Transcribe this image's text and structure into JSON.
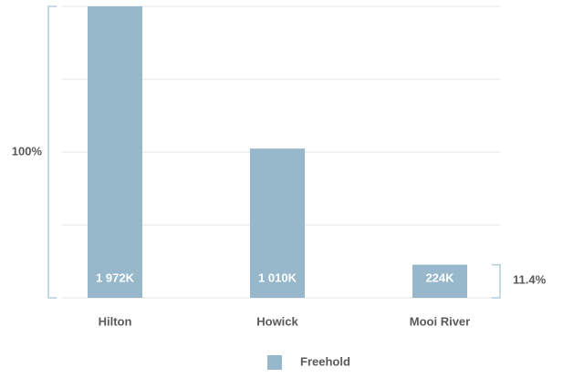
{
  "chart_data": {
    "type": "bar",
    "categories": [
      "Hilton",
      "Howick",
      "Mooi River"
    ],
    "series": [
      {
        "name": "Freehold",
        "color": "#97b7ca",
        "values": [
          1972,
          1010,
          224
        ],
        "value_labels": [
          "1 972K",
          "1 010K",
          "224K"
        ]
      }
    ],
    "annotations": [
      {
        "text": "100%",
        "category": 0
      },
      {
        "text": "11.4%",
        "category": 2
      }
    ],
    "grid": true
  }
}
